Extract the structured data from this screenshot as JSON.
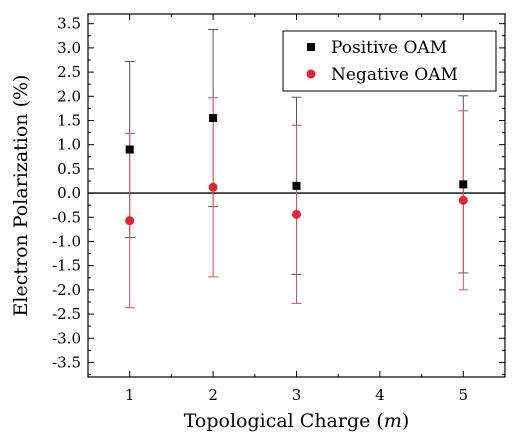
{
  "chart_data": {
    "type": "scatter",
    "xlabel_prefix": "Topological Charge (",
    "xlabel_var": "m",
    "xlabel_suffix": ")",
    "ylabel": "Electron Polarization (%)",
    "xlim": [
      0.5,
      5.5
    ],
    "ylim": [
      -3.8,
      3.7
    ],
    "xticks": [
      1,
      2,
      3,
      4,
      5
    ],
    "yticks": [
      -3.5,
      -3.0,
      -2.5,
      -2.0,
      -1.5,
      -1.0,
      -0.5,
      0.0,
      0.5,
      1.0,
      1.5,
      2.0,
      2.5,
      3.0,
      3.5
    ],
    "ytick_labels": [
      "-3.5",
      "-3.0",
      "-2.5",
      "-2.0",
      "-1.5",
      "-1.0",
      "-0.5",
      "0.0",
      "0.5",
      "1.0",
      "1.5",
      "2.0",
      "2.5",
      "3.0",
      "3.5"
    ],
    "xtick_labels": [
      "1",
      "2",
      "3",
      "4",
      "5"
    ],
    "reference_line_y": 0,
    "legend_position": "top-right",
    "series": [
      {
        "name": "Positive OAM",
        "marker": "square",
        "color": "#000000",
        "errorbar_color": "#555555",
        "x": [
          1,
          2,
          3,
          5
        ],
        "y": [
          0.9,
          1.55,
          0.15,
          0.18
        ],
        "yerr": [
          1.82,
          1.83,
          1.83,
          1.83
        ]
      },
      {
        "name": "Negative OAM",
        "marker": "circle",
        "color": "#e8232b",
        "errorbar_color": "#e05050",
        "x": [
          1,
          2,
          3,
          5
        ],
        "y": [
          -0.57,
          0.12,
          -0.44,
          -0.15
        ],
        "yerr": [
          1.8,
          1.85,
          1.84,
          1.85
        ]
      }
    ]
  }
}
